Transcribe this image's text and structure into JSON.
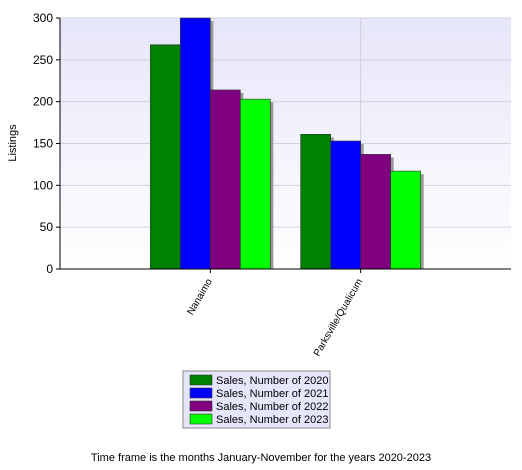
{
  "chart_data": {
    "type": "bar",
    "y_label": "Listings",
    "categories": [
      "Nanaimo",
      "Parksville/Qualicum"
    ],
    "series": [
      {
        "name": "Sales, Number of 2020",
        "color": "#008000",
        "values": [
          268,
          161
        ]
      },
      {
        "name": "Sales, Number of 2021",
        "color": "#0000ff",
        "values": [
          300,
          153
        ]
      },
      {
        "name": "Sales, Number of 2022",
        "color": "#800080",
        "values": [
          214,
          137
        ]
      },
      {
        "name": "Sales, Number of 2023",
        "color": "#00ff00",
        "values": [
          203,
          117
        ]
      }
    ],
    "ylim": [
      0,
      300
    ],
    "yticks": [
      0,
      50,
      100,
      150,
      200,
      250,
      300
    ],
    "grid": true,
    "footnote": "Time frame is the months January-November for the years 2020-2023"
  }
}
